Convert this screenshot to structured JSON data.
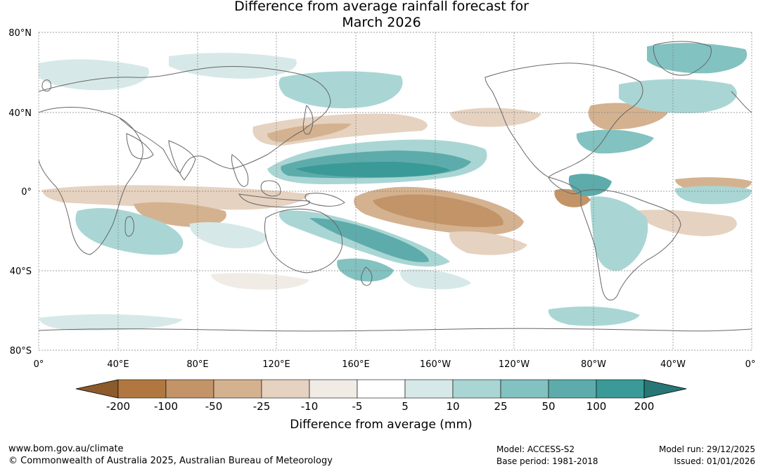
{
  "title": {
    "line1": "Difference from average rainfall forecast for",
    "line2": "March 2026"
  },
  "map": {
    "lat_labels": [
      "80°N",
      "40°N",
      "0°",
      "40°S",
      "80°S"
    ],
    "lon_labels": [
      "0°",
      "40°E",
      "80°E",
      "120°E",
      "160°E",
      "160°W",
      "120°W",
      "80°W",
      "40°W",
      "0°"
    ]
  },
  "colorbar": {
    "ticks": [
      "-200",
      "-100",
      "-50",
      "-25",
      "-10",
      "-5",
      "5",
      "10",
      "25",
      "50",
      "100",
      "200"
    ],
    "colors": [
      "#8c5a2b",
      "#b07840",
      "#c29468",
      "#d4b290",
      "#e6d2c0",
      "#f1ebe6",
      "#ffffff",
      "#d6e9e8",
      "#a9d6d4",
      "#82c2c0",
      "#5dacab",
      "#3a9a98",
      "#267775"
    ],
    "label": "Difference from average (mm)"
  },
  "footer": {
    "website": "www.bom.gov.au/climate",
    "copyright": "© Commonwealth of Australia 2025, Australian Bureau of Meteorology",
    "model": "Model: ACCESS-S2",
    "base_period": "Base period: 1981-2018",
    "model_run": "Model run: 29/12/2025",
    "issued": "Issued: 01/01/2026"
  }
}
